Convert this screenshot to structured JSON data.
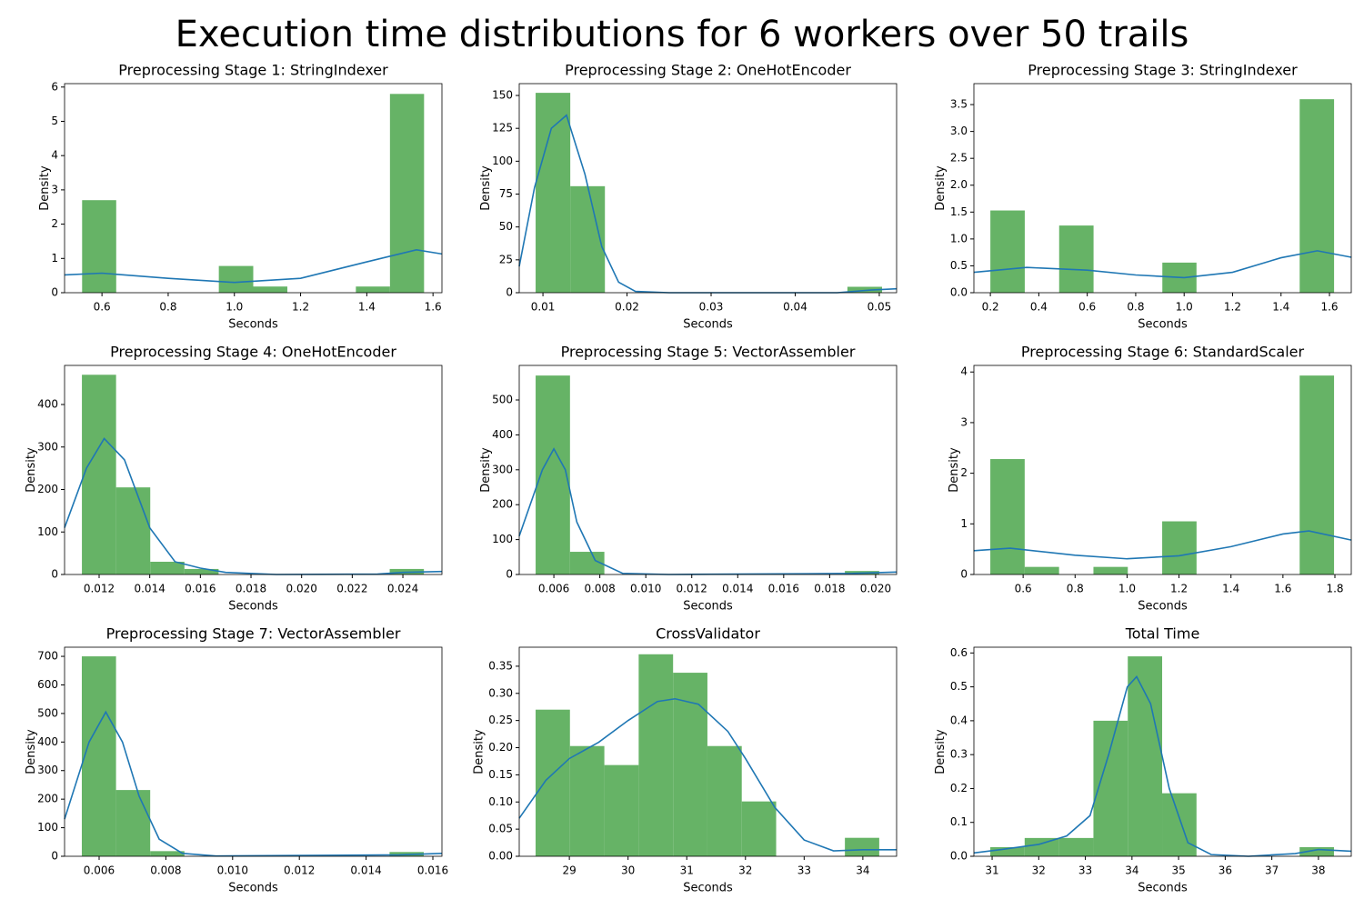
{
  "title": "Execution time distributions for 6 workers over 50 trails",
  "chart_data": [
    {
      "type": "histogram",
      "title": "Preprocessing Stage 1: StringIndexer",
      "xlabel": "Seconds",
      "ylabel": "Density",
      "color": "#66b366",
      "bins": [
        0.54,
        0.643,
        0.747,
        0.85,
        0.953,
        1.057,
        1.16,
        1.263,
        1.367,
        1.47,
        1.573
      ],
      "values": [
        2.7,
        0,
        0,
        0,
        0.78,
        0.18,
        0,
        0,
        0.18,
        5.8
      ],
      "kde": {
        "color": "#1f77b4",
        "x": [
          0.487,
          0.6,
          0.8,
          1.0,
          1.2,
          1.4,
          1.55,
          1.627
        ],
        "values": [
          0.52,
          0.57,
          0.42,
          0.3,
          0.42,
          0.9,
          1.25,
          1.13
        ]
      },
      "xlim": [
        0.487,
        1.627
      ],
      "ylim": [
        0,
        6.1
      ],
      "xticks": [
        0.6,
        0.8,
        {
          "value": 1,
          "label": "1.0"
        },
        1.2,
        1.4,
        1.6
      ],
      "yticks": [
        0,
        1,
        2,
        3,
        4,
        5,
        6
      ]
    },
    {
      "type": "histogram",
      "title": "Preprocessing Stage 2: OneHotEncoder",
      "xlabel": "Seconds",
      "ylabel": "Density",
      "color": "#66b366",
      "bins": [
        0.00913,
        0.01325,
        0.01737,
        0.02149,
        0.02561,
        0.02973,
        0.03385,
        0.03797,
        0.04209,
        0.04621,
        0.05033
      ],
      "values": [
        152,
        81,
        0,
        0,
        0,
        0,
        0,
        0,
        0,
        4.5
      ],
      "kde": {
        "color": "#1f77b4",
        "x": [
          0.00718,
          0.009,
          0.011,
          0.0128,
          0.015,
          0.017,
          0.019,
          0.021,
          0.025,
          0.045,
          0.049,
          0.05206
        ],
        "values": [
          20,
          80,
          125,
          135,
          90,
          35,
          8,
          1,
          0,
          0,
          2,
          3
        ]
      },
      "xlim": [
        0.00718,
        0.05206
      ],
      "ylim": [
        0,
        159
      ],
      "xticks": [
        0.01,
        0.02,
        0.03,
        0.04,
        0.05
      ],
      "yticks": [
        0,
        25,
        50,
        75,
        100,
        125,
        150
      ]
    },
    {
      "type": "histogram",
      "title": "Preprocessing Stage 3: StringIndexer",
      "xlabel": "Seconds",
      "ylabel": "Density",
      "color": "#66b366",
      "bins": [
        0.2,
        0.342,
        0.484,
        0.626,
        0.768,
        0.91,
        1.051,
        1.193,
        1.335,
        1.477,
        1.619
      ],
      "values": [
        1.53,
        0,
        1.25,
        0,
        0,
        0.56,
        0,
        0,
        0,
        3.6
      ],
      "kde": {
        "color": "#1f77b4",
        "x": [
          0.132,
          0.35,
          0.6,
          0.8,
          1.0,
          1.2,
          1.4,
          1.55,
          1.69
        ],
        "values": [
          0.38,
          0.47,
          0.42,
          0.33,
          0.28,
          0.38,
          0.65,
          0.78,
          0.66
        ]
      },
      "xlim": [
        0.132,
        1.69
      ],
      "ylim": [
        0,
        3.89
      ],
      "xticks": [
        0.2,
        0.4,
        0.6,
        0.8,
        {
          "value": 1,
          "label": "1.0"
        },
        1.2,
        1.4,
        1.6
      ],
      "yticks": [
        {
          "value": 0,
          "label": "0.0"
        },
        0.5,
        {
          "value": 1,
          "label": "1.0"
        },
        1.5,
        {
          "value": 2,
          "label": "2.0"
        },
        2.5,
        {
          "value": 3,
          "label": "3.0"
        },
        3.5
      ]
    },
    {
      "type": "histogram",
      "title": "Preprocessing Stage 4: OneHotEncoder",
      "xlabel": "Seconds",
      "ylabel": "Density",
      "color": "#66b366",
      "bins": [
        0.01132,
        0.01267,
        0.01402,
        0.01537,
        0.01672,
        0.01808,
        0.01943,
        0.02078,
        0.02213,
        0.02348,
        0.02483
      ],
      "values": [
        470,
        205,
        30,
        13,
        0,
        0,
        0,
        0,
        0,
        13
      ],
      "kde": {
        "color": "#1f77b4",
        "x": [
          0.010635,
          0.0115,
          0.0122,
          0.013,
          0.014,
          0.015,
          0.016,
          0.017,
          0.019,
          0.023,
          0.024,
          0.025543
        ],
        "values": [
          110,
          250,
          320,
          270,
          110,
          30,
          15,
          5,
          0,
          1,
          5,
          7
        ]
      },
      "xlim": [
        0.010635,
        0.025543
      ],
      "ylim": [
        0,
        492
      ],
      "xticks": [
        0.012,
        0.014,
        0.016,
        0.018,
        {
          "value": 0.02,
          "label": "0.020"
        },
        0.022,
        0.024
      ],
      "yticks": [
        0,
        100,
        200,
        300,
        400
      ]
    },
    {
      "type": "histogram",
      "title": "Preprocessing Stage 5: VectorAssembler",
      "xlabel": "Seconds",
      "ylabel": "Density",
      "color": "#66b366",
      "bins": [
        0.005207,
        0.006702,
        0.008197,
        0.009692,
        0.011187,
        0.012682,
        0.014177,
        0.015672,
        0.017167,
        0.018662,
        0.020157
      ],
      "values": [
        570,
        65,
        0,
        0,
        0,
        0,
        0,
        0,
        0,
        10
      ],
      "kde": {
        "color": "#1f77b4",
        "x": [
          0.004493,
          0.0055,
          0.006,
          0.0065,
          0.007,
          0.0078,
          0.009,
          0.011,
          0.019,
          0.020913
        ],
        "values": [
          110,
          300,
          360,
          300,
          150,
          40,
          3,
          0,
          3,
          7
        ]
      },
      "xlim": [
        0.004493,
        0.020913
      ],
      "ylim": [
        0,
        599
      ],
      "xticks": [
        0.006,
        0.008,
        {
          "value": 0.01,
          "label": "0.010"
        },
        0.012,
        0.014,
        0.016,
        0.018,
        {
          "value": 0.02,
          "label": "0.020"
        }
      ],
      "yticks": [
        0,
        100,
        200,
        300,
        400,
        500
      ]
    },
    {
      "type": "histogram",
      "title": "Preprocessing Stage 6: StandardScaler",
      "xlabel": "Seconds",
      "ylabel": "Density",
      "color": "#66b366",
      "bins": [
        0.4737,
        0.606,
        0.7383,
        0.8706,
        1.0029,
        1.1352,
        1.2675,
        1.3998,
        1.5321,
        1.6644,
        1.7967
      ],
      "values": [
        2.28,
        0.15,
        0,
        0.15,
        0,
        1.05,
        0,
        0,
        0,
        3.93
      ],
      "kde": {
        "color": "#1f77b4",
        "x": [
          0.4105,
          0.55,
          0.8,
          1.0,
          1.2,
          1.4,
          1.6,
          1.7,
          1.863
        ],
        "values": [
          0.47,
          0.52,
          0.38,
          0.31,
          0.37,
          0.55,
          0.8,
          0.86,
          0.68
        ]
      },
      "xlim": [
        0.4105,
        1.863
      ],
      "ylim": [
        0,
        4.13
      ],
      "xticks": [
        0.6,
        0.8,
        {
          "value": 1,
          "label": "1.0"
        },
        1.2,
        1.4,
        1.6,
        1.8
      ],
      "yticks": [
        0,
        1,
        2,
        3,
        4
      ]
    },
    {
      "type": "histogram",
      "title": "Preprocessing Stage 7: VectorAssembler",
      "xlabel": "Seconds",
      "ylabel": "Density",
      "color": "#66b366",
      "bins": [
        0.005482,
        0.006507,
        0.007531,
        0.008556,
        0.00958,
        0.010605,
        0.011629,
        0.012654,
        0.013678,
        0.014703,
        0.015727
      ],
      "values": [
        700,
        232,
        18,
        0,
        0,
        0,
        0,
        0,
        0,
        15
      ],
      "kde": {
        "color": "#1f77b4",
        "x": [
          0.004965,
          0.0057,
          0.0062,
          0.0067,
          0.0072,
          0.0078,
          0.0085,
          0.0095,
          0.015,
          0.016272
        ],
        "values": [
          130,
          400,
          505,
          400,
          210,
          60,
          10,
          1,
          5,
          10
        ]
      },
      "xlim": [
        0.004965,
        0.016272
      ],
      "ylim": [
        0,
        732
      ],
      "xticks": [
        0.006,
        0.008,
        {
          "value": 0.01,
          "label": "0.010"
        },
        0.012,
        0.014,
        0.016
      ],
      "yticks": [
        0,
        100,
        200,
        300,
        400,
        500,
        600,
        700
      ]
    },
    {
      "type": "histogram",
      "title": "CrossValidator",
      "xlabel": "Seconds",
      "ylabel": "Density",
      "color": "#66b366",
      "bins": [
        28.425,
        29.01,
        29.596,
        30.181,
        30.767,
        31.352,
        31.937,
        32.523,
        33.108,
        33.694,
        34.279
      ],
      "values": [
        0.27,
        0.203,
        0.168,
        0.372,
        0.338,
        0.203,
        0.101,
        0,
        0,
        0.034
      ],
      "kde": {
        "color": "#1f77b4",
        "x": [
          28.146,
          28.6,
          29,
          29.5,
          30,
          30.5,
          30.8,
          31.2,
          31.7,
          32,
          32.5,
          33,
          33.5,
          34,
          34.575
        ],
        "values": [
          0.07,
          0.14,
          0.18,
          0.21,
          0.25,
          0.285,
          0.29,
          0.28,
          0.23,
          0.18,
          0.09,
          0.03,
          0.01,
          0.012,
          0.012
        ]
      },
      "xlim": [
        28.146,
        34.575
      ],
      "ylim": [
        0,
        0.385
      ],
      "xticks": [
        29,
        30,
        31,
        32,
        33,
        34
      ],
      "yticks": [
        {
          "value": 0,
          "label": "0.00"
        },
        0.05,
        {
          "value": 0.1,
          "label": "0.10"
        },
        0.15,
        {
          "value": 0.2,
          "label": "0.20"
        },
        0.25,
        {
          "value": 0.3,
          "label": "0.30"
        },
        0.35
      ]
    },
    {
      "type": "histogram",
      "title": "Total Time",
      "xlabel": "Seconds",
      "ylabel": "Density",
      "color": "#66b366",
      "bins": [
        30.961,
        31.698,
        32.435,
        33.173,
        33.91,
        34.647,
        35.384,
        36.121,
        36.859,
        37.596,
        38.333
      ],
      "values": [
        0.027,
        0.054,
        0.054,
        0.4,
        0.59,
        0.186,
        0,
        0,
        0,
        0.027
      ],
      "kde": {
        "color": "#1f77b4",
        "x": [
          30.609,
          31.2,
          32,
          32.6,
          33.1,
          33.5,
          33.9,
          34.1,
          34.4,
          34.8,
          35.2,
          35.7,
          36.5,
          37.5,
          38,
          38.704
        ],
        "values": [
          0.01,
          0.02,
          0.035,
          0.06,
          0.12,
          0.3,
          0.5,
          0.53,
          0.45,
          0.2,
          0.04,
          0.005,
          0,
          0.008,
          0.02,
          0.015
        ]
      },
      "xlim": [
        30.609,
        38.704
      ],
      "ylim": [
        0,
        0.617
      ],
      "xticks": [
        31,
        32,
        33,
        34,
        35,
        36,
        37,
        38
      ],
      "yticks": [
        {
          "value": 0,
          "label": "0.0"
        },
        0.1,
        0.2,
        0.3,
        0.4,
        0.5,
        0.6
      ]
    }
  ]
}
